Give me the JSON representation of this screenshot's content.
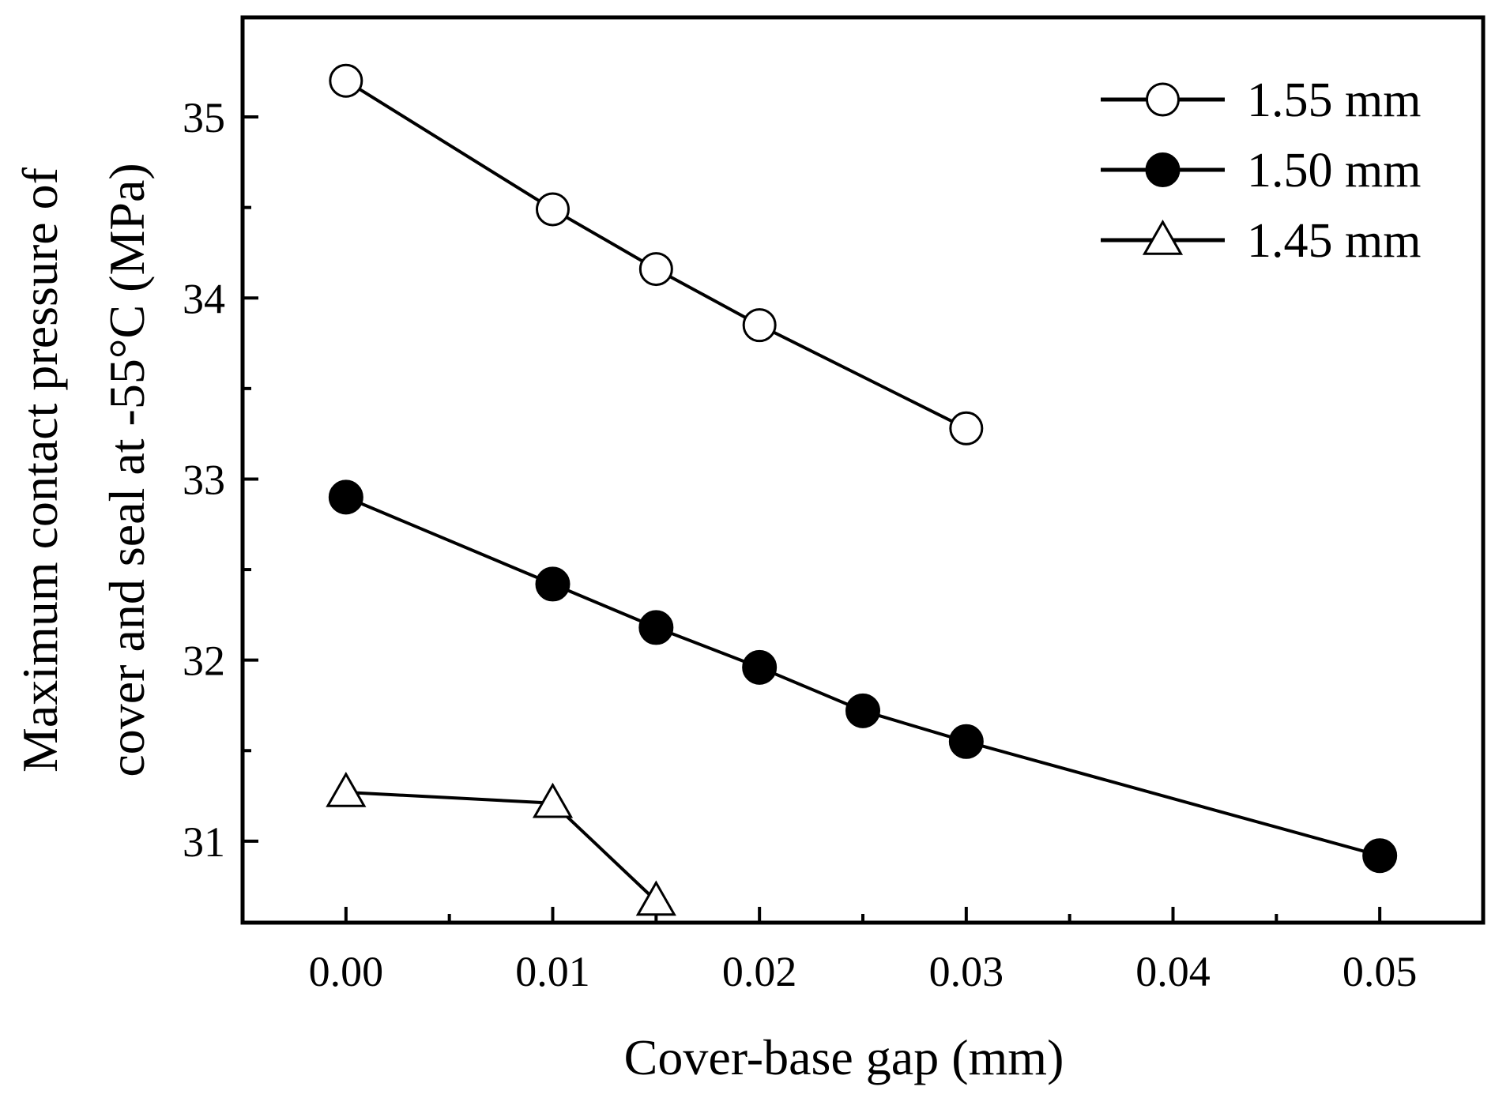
{
  "chart_data": {
    "type": "line",
    "xlabel": "Cover-base gap (mm)",
    "ylabel_lines": [
      "Maximum contact pressure of",
      "cover and seal at -55°C (MPa)"
    ],
    "xlim": [
      -0.005,
      0.055
    ],
    "ylim": [
      30.55,
      35.55
    ],
    "x_ticks": [
      0.0,
      0.01,
      0.02,
      0.03,
      0.04,
      0.05
    ],
    "x_tick_labels": [
      "0.00",
      "0.01",
      "0.02",
      "0.03",
      "0.04",
      "0.05"
    ],
    "x_minor_ticks": [
      0.005,
      0.015,
      0.025,
      0.035,
      0.045
    ],
    "y_ticks": [
      31,
      32,
      33,
      34,
      35
    ],
    "y_tick_labels": [
      "31",
      "32",
      "33",
      "34",
      "35"
    ],
    "y_minor_ticks": [
      31.5,
      32.5,
      33.5,
      34.5
    ],
    "grid": false,
    "legend_position": "top-right",
    "series": [
      {
        "name": "1.55 mm",
        "marker": "circle-open",
        "x": [
          0.0,
          0.01,
          0.015,
          0.02,
          0.03
        ],
        "y": [
          35.2,
          34.49,
          34.16,
          33.85,
          33.28
        ]
      },
      {
        "name": "1.50 mm",
        "marker": "circle-filled",
        "x": [
          0.0,
          0.01,
          0.015,
          0.02,
          0.025,
          0.03,
          0.05
        ],
        "y": [
          32.9,
          32.42,
          32.18,
          31.96,
          31.72,
          31.55,
          30.92
        ]
      },
      {
        "name": "1.45 mm",
        "marker": "triangle-open",
        "x": [
          0.0,
          0.01,
          0.015
        ],
        "y": [
          31.27,
          31.21,
          30.67
        ]
      }
    ]
  }
}
